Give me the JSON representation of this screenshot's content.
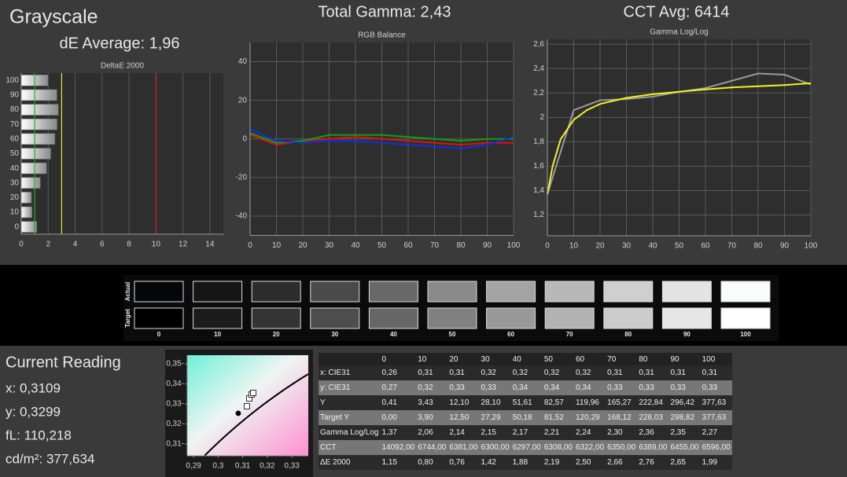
{
  "header": {
    "title": "Grayscale",
    "de_average": "dE Average: 1,96",
    "total_gamma": "Total Gamma: 2,43",
    "cct_avg": "CCT Avg: 6414"
  },
  "chart_data": [
    {
      "type": "hbar",
      "title": "DeltaE 2000",
      "categories": [
        "100",
        "90",
        "80",
        "70",
        "60",
        "50",
        "40",
        "30",
        "20",
        "10",
        "0"
      ],
      "values": [
        1.99,
        2.65,
        2.76,
        2.66,
        2.5,
        2.19,
        1.88,
        1.42,
        0.76,
        0.8,
        1.15
      ],
      "xlim": [
        0,
        15
      ],
      "xticks": [
        0,
        2,
        4,
        6,
        8,
        10,
        12,
        14
      ],
      "grid": true,
      "reference_lines": [
        {
          "value": 1,
          "color": "#2fa82f"
        },
        {
          "value": 3,
          "color": "#e6e62e"
        },
        {
          "value": 10,
          "color": "#d42020"
        }
      ]
    },
    {
      "type": "line",
      "title": "RGB Balance",
      "x": [
        0,
        10,
        20,
        30,
        40,
        50,
        60,
        70,
        80,
        90,
        100
      ],
      "series": [
        {
          "color": "#e01010",
          "values": [
            2,
            -3,
            -1,
            0,
            1,
            0,
            -1,
            -2,
            -3,
            -2,
            -2
          ]
        },
        {
          "color": "#10a010",
          "values": [
            3,
            -2,
            -1,
            2,
            2,
            2,
            1,
            0,
            -1,
            0,
            0
          ]
        },
        {
          "color": "#1030e0",
          "values": [
            5,
            -1,
            -2,
            -1,
            -1,
            -2,
            -3,
            -4,
            -5,
            -3,
            1
          ]
        }
      ],
      "xlim": [
        0,
        100
      ],
      "xticks": [
        0,
        10,
        20,
        30,
        40,
        50,
        60,
        70,
        80,
        90,
        100
      ],
      "ylim": [
        -50,
        50
      ],
      "yticks": [
        -40,
        -20,
        0,
        20,
        40
      ],
      "grid": true
    },
    {
      "type": "line",
      "title": "Gamma Log/Log",
      "series": [
        {
          "color": "#9a9a9a",
          "x": [
            0,
            10,
            20,
            30,
            40,
            50,
            60,
            70,
            80,
            90,
            100
          ],
          "values": [
            1.37,
            2.06,
            2.14,
            2.15,
            2.17,
            2.21,
            2.24,
            2.3,
            2.36,
            2.35,
            2.27
          ]
        },
        {
          "color": "#f2f224",
          "x": [
            0,
            2,
            5,
            10,
            15,
            20,
            30,
            40,
            50,
            60,
            70,
            80,
            90,
            100
          ],
          "values": [
            1.37,
            1.6,
            1.82,
            1.98,
            2.06,
            2.11,
            2.16,
            2.19,
            2.21,
            2.23,
            2.245,
            2.255,
            2.265,
            2.28
          ]
        }
      ],
      "xlim": [
        0,
        100
      ],
      "xticks": [
        0,
        10,
        20,
        30,
        40,
        50,
        60,
        70,
        80,
        90,
        100
      ],
      "ylim": [
        1.03,
        2.64
      ],
      "yticks": [
        {
          "value": 1.2,
          "label": "1,2"
        },
        {
          "value": 1.4,
          "label": "1,4"
        },
        {
          "value": 1.6,
          "label": "1,6"
        },
        {
          "value": 1.8,
          "label": "1,8"
        },
        {
          "value": 2,
          "label": "2"
        },
        {
          "value": 2.2,
          "label": "2,2"
        },
        {
          "value": 2.4,
          "label": "2,4"
        },
        {
          "value": 2.6,
          "label": "2,6"
        }
      ],
      "grid": true
    },
    {
      "type": "scatter",
      "series": [
        {
          "color": "#000000",
          "marker": "dot",
          "x": [
            0.3082
          ],
          "values": [
            0.3253
          ]
        },
        {
          "color": "#ffffff",
          "marker": "square",
          "x": [
            0.3117,
            0.3127,
            0.3136,
            0.3143
          ],
          "values": [
            0.3288,
            0.3327,
            0.3347,
            0.3355
          ]
        }
      ],
      "xlim": [
        0.2874,
        0.3367
      ],
      "xticks": [
        {
          "value": 0.29,
          "label": "0,29"
        },
        {
          "value": 0.3,
          "label": "0,3"
        },
        {
          "value": 0.31,
          "label": "0,31"
        },
        {
          "value": 0.32,
          "label": "0,32"
        },
        {
          "value": 0.33,
          "label": "0,33"
        }
      ],
      "ylim": [
        0.3041,
        0.3543
      ],
      "yticks": [
        {
          "value": 0.31,
          "label": "0,31-"
        },
        {
          "value": 0.32,
          "label": "0,32-"
        },
        {
          "value": 0.33,
          "label": "0,33-"
        },
        {
          "value": 0.34,
          "label": "0,34-"
        },
        {
          "value": 0.35,
          "label": "0,35-"
        }
      ]
    }
  ],
  "swatches": {
    "rows": [
      {
        "name": "Actual",
        "colors": [
          "#050608",
          "#151515",
          "#2c2c2c",
          "#4a4a4a",
          "#686868",
          "#8a8a8a",
          "#a3a3a3",
          "#b8b8b8",
          "#cfcfcf",
          "#e3e3e3",
          "#f8fcfb"
        ]
      },
      {
        "name": "Target",
        "colors": [
          "#000000",
          "#1c1c1c",
          "#343434",
          "#4d4d4d",
          "#666666",
          "#808080",
          "#999999",
          "#b3b3b3",
          "#cccccc",
          "#e6e6e6",
          "#ffffff"
        ]
      }
    ],
    "labels": [
      "0",
      "10",
      "20",
      "30",
      "40",
      "50",
      "60",
      "70",
      "80",
      "90",
      "100"
    ]
  },
  "current_reading": {
    "title": "Current Reading",
    "x": "x: 0,3109",
    "y": "y: 0,3299",
    "fl": "fL: 110,218",
    "cdm2": "cd/m²: 377,634"
  },
  "table": {
    "columns": [
      "0",
      "10",
      "20",
      "30",
      "40",
      "50",
      "60",
      "70",
      "80",
      "90",
      "100"
    ],
    "rows": [
      {
        "label": "x: CIE31",
        "cells": [
          "0,26",
          "0,31",
          "0,31",
          "0,32",
          "0,32",
          "0,32",
          "0,32",
          "0,31",
          "0,31",
          "0,31",
          "0,31"
        ]
      },
      {
        "label": "y: CIE31",
        "cells": [
          "0,27",
          "0,32",
          "0,33",
          "0,33",
          "0,34",
          "0,34",
          "0,34",
          "0,33",
          "0,33",
          "0,33",
          "0,33"
        ]
      },
      {
        "label": "Y",
        "cells": [
          "0,41",
          "3,43",
          "12,10",
          "28,10",
          "51,61",
          "82,57",
          "119,96",
          "165,27",
          "222,84",
          "296,42",
          "377,63"
        ]
      },
      {
        "label": "Target Y",
        "cells": [
          "0,00",
          "3,90",
          "12,50",
          "27,29",
          "50,18",
          "81,52",
          "120,29",
          "168,12",
          "228,03",
          "298,82",
          "377,63"
        ]
      },
      {
        "label": "Gamma Log/Log",
        "cells": [
          "1,37",
          "2,06",
          "2,14",
          "2,15",
          "2,17",
          "2,21",
          "2,24",
          "2,30",
          "2,36",
          "2,35",
          "2,27"
        ]
      },
      {
        "label": "CCT",
        "cells": [
          "14092,00",
          "6744,00",
          "6381,00",
          "6300,00",
          "6297,00",
          "6308,00",
          "6322,00",
          "6350,00",
          "6389,00",
          "6455,00",
          "6596,00"
        ]
      },
      {
        "label": "ΔE 2000",
        "cells": [
          "1,15",
          "0,80",
          "0,76",
          "1,42",
          "1,88",
          "2,19",
          "2,50",
          "2,66",
          "2,76",
          "2,65",
          "1,99"
        ]
      }
    ]
  }
}
